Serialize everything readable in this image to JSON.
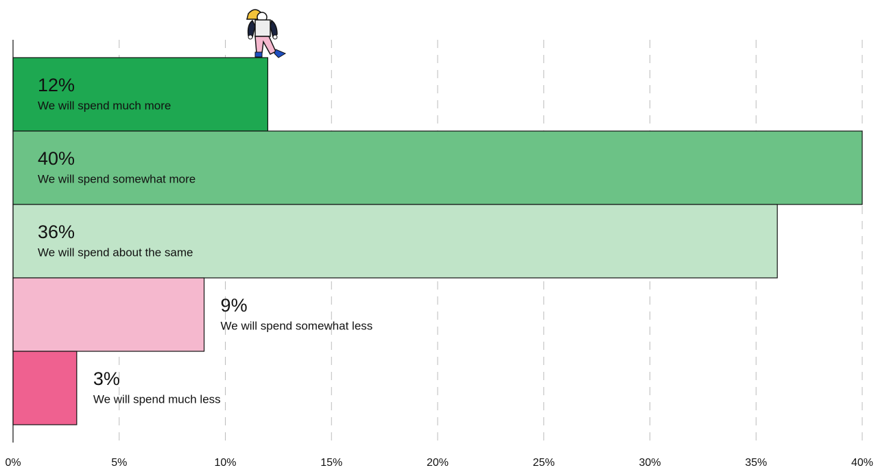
{
  "chart_data": {
    "type": "barh",
    "categories": [
      "We will spend much more",
      "We will spend somewhat more",
      "We will spend about the same",
      "We will spend somewhat less",
      "We will spend much less"
    ],
    "values": [
      12,
      40,
      36,
      9,
      3
    ],
    "value_labels": [
      "12%",
      "40%",
      "36%",
      "9%",
      "3%"
    ],
    "colors": [
      "#1ea851",
      "#6cc286",
      "#c0e4c8",
      "#f5b8ce",
      "#ef6190"
    ],
    "xlim": [
      0,
      40
    ],
    "xticks": [
      {
        "value": 0,
        "label": "0%"
      },
      {
        "value": 5,
        "label": "5%"
      },
      {
        "value": 10,
        "label": "10%"
      },
      {
        "value": 15,
        "label": "15%"
      },
      {
        "value": 20,
        "label": "20%"
      },
      {
        "value": 25,
        "label": "25%"
      },
      {
        "value": 30,
        "label": "30%"
      },
      {
        "value": 35,
        "label": "35%"
      },
      {
        "value": 40,
        "label": "40%"
      }
    ],
    "grid": true
  }
}
